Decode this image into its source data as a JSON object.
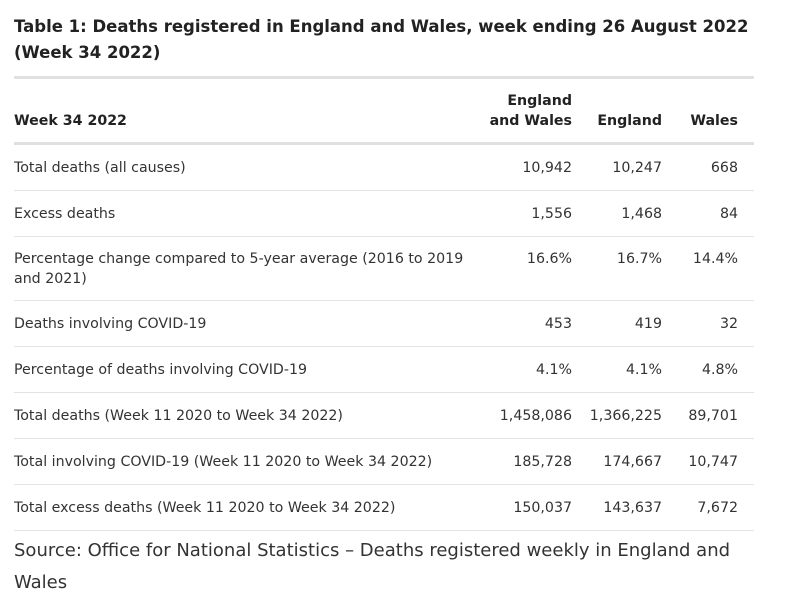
{
  "title": "Table 1: Deaths registered in England and Wales, week ending 26 August 2022 (Week 34 2022)",
  "table": {
    "headers": [
      "Week 34 2022",
      "England and Wales",
      "England",
      "Wales"
    ],
    "rows": [
      [
        "Total deaths (all causes)",
        "10,942",
        "10,247",
        "668"
      ],
      [
        "Excess deaths",
        "1,556",
        "1,468",
        "84"
      ],
      [
        "Percentage change compared to 5-year average (2016 to 2019 and 2021)",
        "16.6%",
        "16.7%",
        "14.4%"
      ],
      [
        "Deaths involving COVID-19",
        "453",
        "419",
        "32"
      ],
      [
        "Percentage of deaths involving COVID-19",
        "4.1%",
        "4.1%",
        "4.8%"
      ],
      [
        "Total deaths (Week 11 2020 to Week 34 2022)",
        "1,458,086",
        "1,366,225",
        "89,701"
      ],
      [
        "Total involving COVID-19 (Week 11 2020 to Week 34 2022)",
        "185,728",
        "174,667",
        "10,747"
      ],
      [
        "Total excess deaths (Week 11 2020 to Week 34 2022)",
        "150,037",
        "143,637",
        "7,672"
      ]
    ]
  },
  "source": "Source: Office for National Statistics – Deaths registered weekly in England and Wales"
}
